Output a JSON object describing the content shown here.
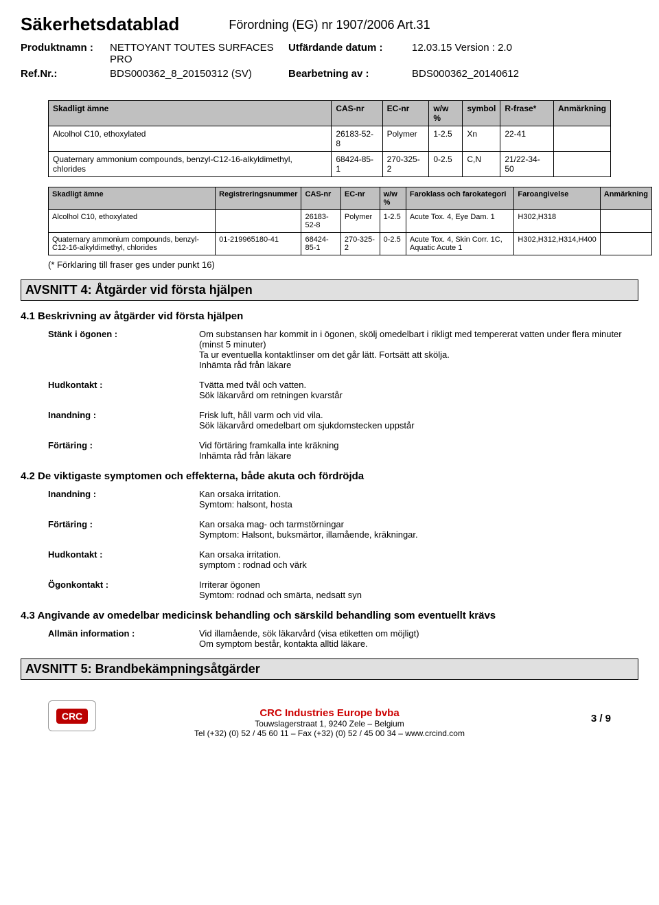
{
  "header": {
    "doc_title": "Säkerhetsdatablad",
    "regulation": "Förordning (EG) nr 1907/2006 Art.31",
    "product_label": "Produktnamn :",
    "product_name": "NETTOYANT TOUTES SURFACES PRO",
    "issue_label": "Utfärdande datum :",
    "issue_value": "12.03.15 Version : 2.0",
    "ref_label": "Ref.Nr.:",
    "ref_value": "BDS000362_8_20150312 (SV)",
    "rev_label": "Bearbetning av :",
    "rev_value": "BDS000362_20140612"
  },
  "table1": {
    "headers": [
      "Skadligt ämne",
      "CAS-nr",
      "EC-nr",
      "w/w %",
      "symbol",
      "R-frase*",
      "Anmärkning"
    ],
    "rows": [
      [
        "Alcolhol C10, ethoxylated",
        "26183-52-8",
        "Polymer",
        "1-2.5",
        "Xn",
        "22-41",
        ""
      ],
      [
        "Quaternary ammonium compounds, benzyl-C12-16-alkyldimethyl, chlorides",
        "68424-85-1",
        "270-325-2",
        "0-2.5",
        "C,N",
        "21/22-34-50",
        ""
      ]
    ]
  },
  "table2": {
    "headers": [
      "Skadligt ämne",
      "Registreringsnummer",
      "CAS-nr",
      "EC-nr",
      "w/w %",
      "Faroklass och farokategori",
      "Faroangivelse",
      "Anmärkning"
    ],
    "rows": [
      [
        "Alcolhol C10, ethoxylated",
        "",
        "26183-52-8",
        "Polymer",
        "1-2.5",
        "Acute Tox. 4, Eye Dam. 1",
        "H302,H318",
        ""
      ],
      [
        "Quaternary ammonium compounds, benzyl-C12-16-alkyldimethyl, chlorides",
        "01-219965180-41",
        "68424-85-1",
        "270-325-2",
        "0-2.5",
        "Acute Tox. 4, Skin Corr. 1C, Aquatic Acute 1",
        "H302,H312,H314,H400",
        ""
      ]
    ]
  },
  "footnote": "(* Förklaring till fraser ges under punkt 16)",
  "sec4": {
    "title": "AVSNITT 4: Åtgärder vid första hjälpen",
    "s41": "4.1 Beskrivning av åtgärder vid första hjälpen",
    "rows41": [
      {
        "l": "Stänk i ögonen :",
        "v": "Om substansen har kommit in i ögonen, skölj omedelbart i rikligt med tempererat vatten under flera minuter (minst 5 minuter)\nTa ur eventuella kontaktlinser om det går lätt. Fortsätt att skölja.\nInhämta råd från läkare"
      },
      {
        "l": "Hudkontakt :",
        "v": "Tvätta med tvål och vatten.\nSök läkarvård om retningen kvarstår"
      },
      {
        "l": "Inandning :",
        "v": "Frisk luft, håll varm och vid vila.\nSök läkarvård omedelbart om sjukdomstecken uppstår"
      },
      {
        "l": "Förtäring :",
        "v": "Vid förtäring framkalla inte kräkning\nInhämta råd från läkare"
      }
    ],
    "s42": "4.2 De viktigaste symptomen och effekterna, både akuta och fördröjda",
    "rows42": [
      {
        "l": "Inandning :",
        "v": "Kan orsaka irritation.\nSymtom: halsont, hosta"
      },
      {
        "l": "Förtäring :",
        "v": "Kan orsaka mag- och tarmstörningar\nSymptom: Halsont, buksmärtor, illamående, kräkningar."
      },
      {
        "l": "Hudkontakt :",
        "v": "Kan orsaka irritation.\nsymptom : rodnad och värk"
      },
      {
        "l": "Ögonkontakt :",
        "v": "Irriterar ögonen\nSymtom: rodnad och smärta, nedsatt syn"
      }
    ],
    "s43": "4.3 Angivande av omedelbar medicinsk behandling och särskild behandling som eventuellt krävs",
    "rows43": [
      {
        "l": "Allmän information :",
        "v": "Vid illamående, sök läkarvård (visa etiketten om möjligt)\nOm symptom består, kontakta alltid läkare."
      }
    ]
  },
  "sec5": {
    "title": "AVSNITT 5: Brandbekämpningsåtgärder"
  },
  "footer": {
    "logo": "CRC",
    "company": "CRC Industries Europe bvba",
    "addr": "Touwslagerstraat 1,  9240 Zele – Belgium",
    "tel": "Tel (+32) (0) 52 / 45 60 11 – Fax (+32) (0) 52 / 45 00 34 – www.crcind.com",
    "page": "3 / 9"
  }
}
